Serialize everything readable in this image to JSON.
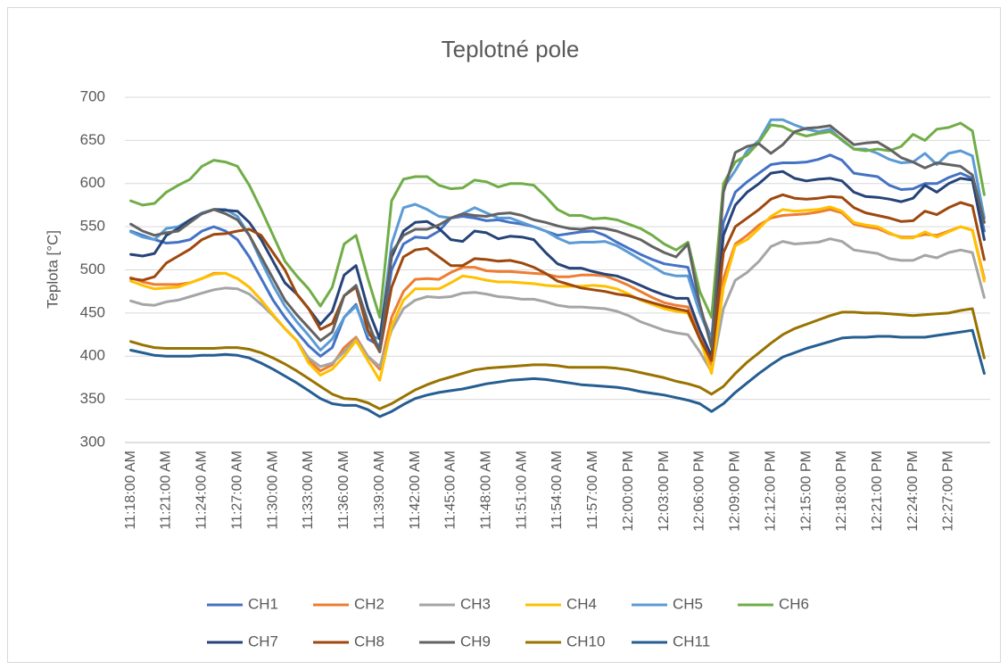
{
  "chart_data": {
    "type": "line",
    "title": "Teplotné pole",
    "y_label": "Teplota [°C]",
    "categories": [
      "11:18:00 AM",
      null,
      null,
      "11:21:00 AM",
      null,
      null,
      "11:24:00 AM",
      null,
      null,
      "11:27:00 AM",
      null,
      null,
      "11:30:00 AM",
      null,
      null,
      "11:33:00 AM",
      null,
      null,
      "11:36:00 AM",
      null,
      null,
      "11:39:00 AM",
      null,
      null,
      "11:42:00 AM",
      null,
      null,
      "11:45:00 AM",
      null,
      null,
      "11:48:00 AM",
      null,
      null,
      "11:51:00 AM",
      null,
      null,
      "11:54:00 AM",
      null,
      null,
      "11:57:00 AM",
      null,
      null,
      "12:00:00 PM",
      null,
      null,
      "12:03:00 PM",
      null,
      null,
      "12:06:00 PM",
      null,
      null,
      "12:09:00 PM",
      null,
      null,
      "12:12:00 PM",
      null,
      null,
      "12:15:00 PM",
      null,
      null,
      "12:18:00 PM",
      null,
      null,
      "12:21:00 PM",
      null,
      null,
      "12:24:00 PM",
      null,
      null,
      "12:27:00 PM",
      null,
      null,
      null
    ],
    "ylim": [
      300,
      700
    ],
    "yticks": [
      300,
      350,
      400,
      450,
      500,
      550,
      600,
      650,
      700
    ],
    "grid": true,
    "legend": "bottom",
    "series": [
      {
        "name": "CH1",
        "color": "#4472c4",
        "values": [
          545,
          540,
          535,
          531,
          532,
          535,
          545,
          550,
          545,
          535,
          515,
          490,
          465,
          445,
          428,
          412,
          400,
          410,
          445,
          460,
          420,
          412,
          500,
          530,
          538,
          537,
          545,
          560,
          562,
          560,
          557,
          558,
          555,
          553,
          550,
          545,
          540,
          542,
          544,
          545,
          540,
          532,
          525,
          518,
          512,
          507,
          505,
          503,
          455,
          420,
          555,
          590,
          602,
          612,
          622,
          624,
          624,
          625,
          628,
          633,
          627,
          612,
          610,
          608,
          598,
          593,
          594,
          600,
          600,
          607,
          612,
          606,
          545
        ]
      },
      {
        "name": "CH2",
        "color": "#ed7d31",
        "values": [
          491,
          486,
          483,
          483,
          483,
          485,
          490,
          496,
          496,
          490,
          480,
          465,
          448,
          432,
          418,
          395,
          383,
          390,
          410,
          422,
          400,
          385,
          445,
          475,
          489,
          490,
          489,
          497,
          503,
          503,
          499,
          498,
          498,
          497,
          496,
          495,
          492,
          492,
          494,
          494,
          493,
          488,
          482,
          475,
          468,
          462,
          459,
          457,
          425,
          390,
          490,
          530,
          540,
          552,
          560,
          563,
          564,
          565,
          567,
          570,
          566,
          553,
          550,
          548,
          542,
          538,
          538,
          541,
          540,
          545,
          550,
          546,
          490
        ]
      },
      {
        "name": "CH3",
        "color": "#a5a5a5",
        "values": [
          464,
          460,
          459,
          463,
          465,
          469,
          473,
          477,
          479,
          478,
          472,
          460,
          447,
          432,
          418,
          398,
          388,
          392,
          405,
          420,
          400,
          388,
          430,
          455,
          465,
          469,
          468,
          469,
          473,
          474,
          472,
          469,
          468,
          466,
          466,
          463,
          459,
          457,
          457,
          456,
          455,
          452,
          447,
          440,
          435,
          430,
          427,
          425,
          405,
          382,
          455,
          488,
          497,
          510,
          527,
          533,
          530,
          531,
          532,
          536,
          533,
          523,
          521,
          519,
          513,
          511,
          511,
          517,
          514,
          520,
          523,
          520,
          468
        ]
      },
      {
        "name": "CH4",
        "color": "#ffc000",
        "values": [
          487,
          482,
          478,
          479,
          480,
          485,
          490,
          495,
          496,
          490,
          480,
          465,
          448,
          432,
          418,
          392,
          378,
          385,
          400,
          418,
          395,
          372,
          435,
          465,
          478,
          478,
          478,
          485,
          493,
          491,
          488,
          486,
          486,
          485,
          484,
          482,
          481,
          481,
          481,
          482,
          481,
          478,
          472,
          465,
          460,
          455,
          452,
          450,
          420,
          380,
          480,
          528,
          535,
          548,
          562,
          570,
          568,
          569,
          570,
          573,
          568,
          555,
          552,
          550,
          543,
          537,
          537,
          544,
          538,
          544,
          550,
          546,
          487
        ]
      },
      {
        "name": "CH5",
        "color": "#5b9bd5",
        "values": [
          544,
          538,
          535,
          548,
          550,
          558,
          566,
          570,
          570,
          562,
          540,
          510,
          482,
          458,
          440,
          424,
          407,
          420,
          445,
          458,
          425,
          420,
          530,
          572,
          576,
          570,
          562,
          560,
          565,
          572,
          566,
          560,
          560,
          555,
          550,
          545,
          537,
          531,
          532,
          532,
          533,
          528,
          520,
          512,
          504,
          496,
          493,
          493,
          450,
          418,
          595,
          615,
          638,
          650,
          674,
          674,
          668,
          663,
          660,
          663,
          650,
          640,
          640,
          635,
          628,
          624,
          625,
          635,
          622,
          635,
          638,
          632,
          560
        ]
      },
      {
        "name": "CH6",
        "color": "#70ad47",
        "values": [
          580,
          575,
          577,
          590,
          598,
          605,
          620,
          627,
          625,
          620,
          598,
          570,
          540,
          510,
          493,
          478,
          458,
          480,
          530,
          540,
          490,
          445,
          580,
          605,
          608,
          608,
          598,
          594,
          595,
          604,
          602,
          596,
          600,
          600,
          598,
          585,
          570,
          563,
          563,
          559,
          560,
          558,
          553,
          548,
          540,
          530,
          523,
          532,
          475,
          445,
          600,
          625,
          633,
          648,
          668,
          666,
          659,
          655,
          658,
          660,
          651,
          640,
          638,
          640,
          638,
          643,
          657,
          650,
          663,
          665,
          670,
          661,
          587
        ]
      },
      {
        "name": "CH7",
        "color": "#264478",
        "values": [
          518,
          516,
          519,
          540,
          548,
          558,
          565,
          570,
          569,
          568,
          555,
          535,
          510,
          485,
          472,
          455,
          437,
          452,
          494,
          505,
          455,
          420,
          515,
          545,
          555,
          556,
          548,
          535,
          533,
          545,
          543,
          536,
          539,
          538,
          535,
          520,
          507,
          502,
          502,
          498,
          495,
          493,
          488,
          482,
          476,
          471,
          467,
          467,
          430,
          400,
          540,
          575,
          590,
          600,
          612,
          614,
          606,
          603,
          605,
          606,
          603,
          590,
          585,
          584,
          582,
          579,
          583,
          598,
          590,
          600,
          606,
          604,
          535
        ]
      },
      {
        "name": "CH8",
        "color": "#9e480e",
        "values": [
          490,
          488,
          492,
          508,
          516,
          524,
          535,
          541,
          542,
          545,
          547,
          540,
          520,
          500,
          472,
          455,
          431,
          438,
          470,
          480,
          430,
          405,
          480,
          515,
          523,
          525,
          515,
          505,
          505,
          513,
          512,
          510,
          511,
          508,
          503,
          496,
          487,
          483,
          479,
          477,
          475,
          472,
          470,
          466,
          462,
          458,
          455,
          452,
          420,
          395,
          520,
          550,
          560,
          570,
          582,
          587,
          583,
          582,
          583,
          585,
          584,
          572,
          566,
          563,
          560,
          556,
          557,
          568,
          564,
          572,
          578,
          574,
          512
        ]
      },
      {
        "name": "CH9",
        "color": "#636363",
        "values": [
          553,
          545,
          540,
          543,
          545,
          555,
          565,
          570,
          565,
          558,
          540,
          515,
          490,
          465,
          448,
          433,
          418,
          428,
          470,
          482,
          440,
          405,
          520,
          540,
          547,
          547,
          552,
          560,
          565,
          563,
          562,
          565,
          566,
          563,
          558,
          555,
          551,
          548,
          547,
          549,
          548,
          545,
          540,
          535,
          527,
          520,
          515,
          530,
          460,
          410,
          590,
          636,
          643,
          646,
          635,
          645,
          660,
          664,
          665,
          667,
          656,
          645,
          647,
          648,
          640,
          630,
          625,
          618,
          624,
          622,
          620,
          610,
          555
        ]
      },
      {
        "name": "CH10",
        "color": "#997300",
        "values": [
          417,
          413,
          410,
          409,
          409,
          409,
          409,
          409,
          410,
          410,
          408,
          404,
          398,
          391,
          383,
          374,
          365,
          356,
          351,
          350,
          346,
          339,
          345,
          353,
          361,
          367,
          372,
          376,
          380,
          384,
          386,
          387,
          388,
          389,
          390,
          390,
          389,
          387,
          387,
          387,
          387,
          386,
          384,
          381,
          378,
          375,
          371,
          368,
          364,
          356,
          365,
          380,
          393,
          404,
          415,
          425,
          432,
          437,
          442,
          447,
          451,
          451,
          450,
          450,
          449,
          448,
          447,
          448,
          449,
          450,
          453,
          455,
          398
        ]
      },
      {
        "name": "CH11",
        "color": "#255e91",
        "values": [
          407,
          404,
          401,
          400,
          400,
          400,
          401,
          401,
          402,
          401,
          398,
          392,
          385,
          377,
          369,
          360,
          351,
          345,
          343,
          343,
          338,
          330,
          336,
          344,
          351,
          355,
          358,
          360,
          362,
          365,
          368,
          370,
          372,
          373,
          374,
          373,
          371,
          369,
          367,
          366,
          365,
          364,
          362,
          359,
          357,
          355,
          352,
          349,
          345,
          336,
          345,
          358,
          369,
          380,
          390,
          399,
          404,
          409,
          413,
          417,
          421,
          422,
          422,
          423,
          423,
          422,
          422,
          422,
          424,
          426,
          428,
          430,
          380
        ]
      }
    ]
  }
}
